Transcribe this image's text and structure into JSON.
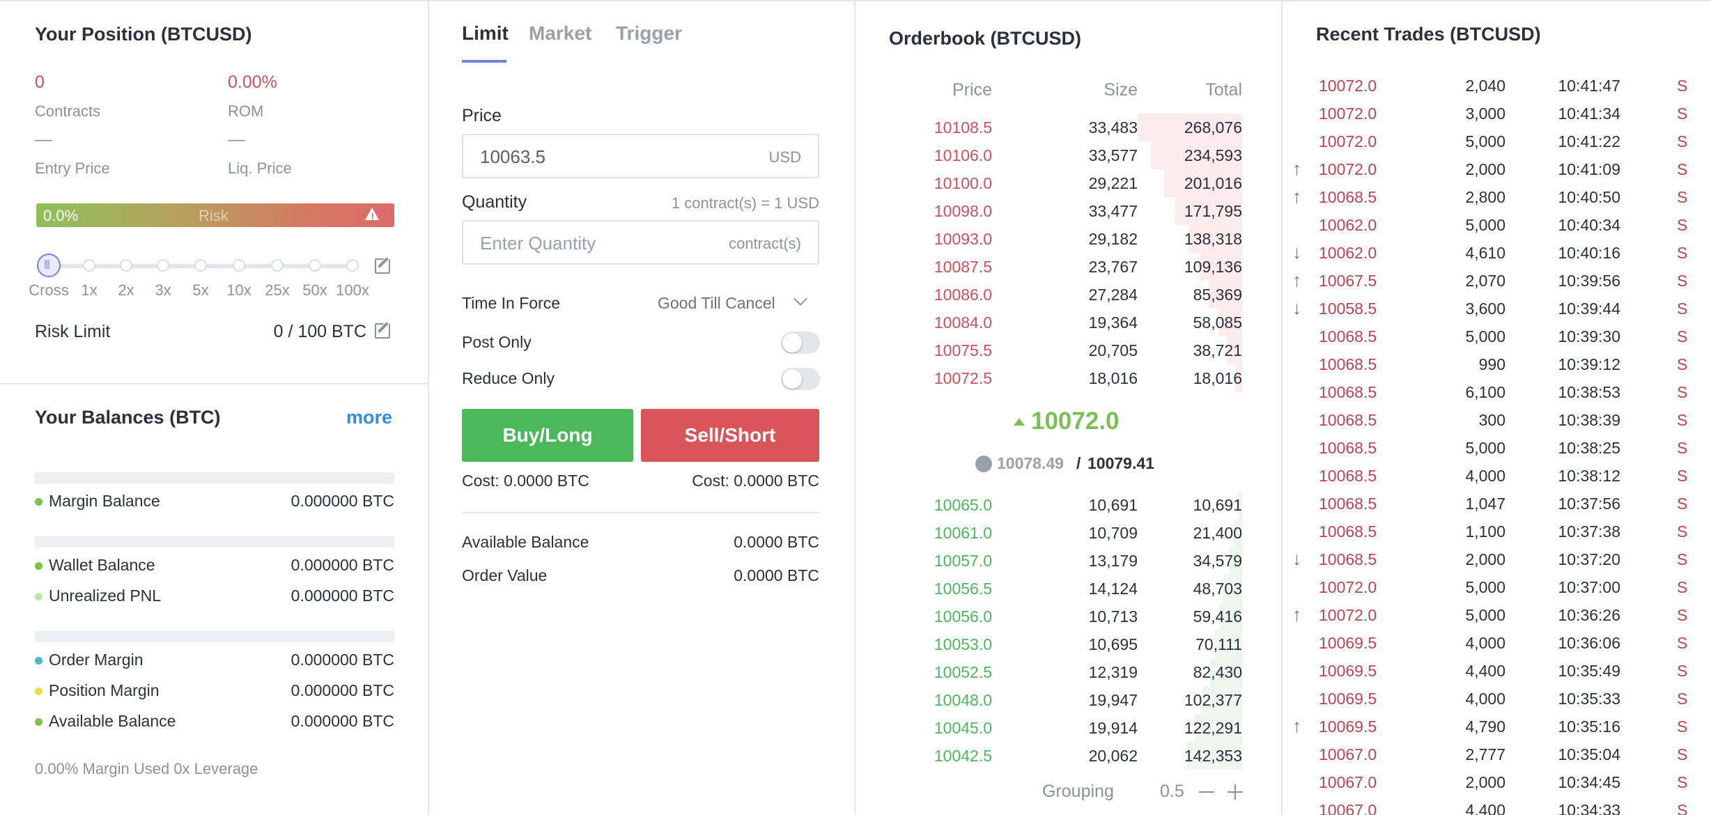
{
  "position": {
    "title": "Your Position (BTCUSD)",
    "contracts_value": "0",
    "contracts_label": "Contracts",
    "rom_value": "0.00%",
    "rom_label": "ROM",
    "entry_value": "—",
    "entry_label": "Entry Price",
    "liq_value": "—",
    "liq_label": "Liq. Price",
    "risk_percent": "0.0%",
    "risk_label": "Risk",
    "risk_level": 0.0,
    "leverage_options": [
      "Cross",
      "1x",
      "2x",
      "3x",
      "5x",
      "10x",
      "25x",
      "50x",
      "100x"
    ],
    "leverage_selected": "Cross",
    "risk_limit_label": "Risk Limit",
    "risk_limit_value": "0 / 100 BTC"
  },
  "balances": {
    "title": "Your Balances (BTC)",
    "more_label": "more",
    "groups": [
      [
        {
          "label": "Margin Balance",
          "value": "0.000000 BTC",
          "color": "#7fbf4d"
        }
      ],
      [
        {
          "label": "Wallet Balance",
          "value": "0.000000 BTC",
          "color": "#7fbf4d"
        },
        {
          "label": "Unrealized PNL",
          "value": "0.000000 BTC",
          "color": "#bfe3a8"
        }
      ],
      [
        {
          "label": "Order Margin",
          "value": "0.000000 BTC",
          "color": "#4fb7c9"
        },
        {
          "label": "Position Margin",
          "value": "0.000000 BTC",
          "color": "#e3e14a"
        },
        {
          "label": "Available Balance",
          "value": "0.000000 BTC",
          "color": "#7fbf4d"
        }
      ]
    ],
    "footer": "0.00% Margin Used 0x Leverage"
  },
  "order": {
    "tabs": [
      "Limit",
      "Market",
      "Trigger"
    ],
    "active_tab": "Limit",
    "price_label": "Price",
    "price_value": "10063.5",
    "price_unit": "USD",
    "quantity_label": "Quantity",
    "quantity_hint": "1 contract(s) = 1 USD",
    "quantity_placeholder": "Enter Quantity",
    "quantity_unit": "contract(s)",
    "tif_label": "Time In Force",
    "tif_value": "Good Till Cancel",
    "post_only_label": "Post Only",
    "post_only": false,
    "reduce_only_label": "Reduce Only",
    "reduce_only": false,
    "buy_label": "Buy/Long",
    "sell_label": "Sell/Short",
    "buy_cost": "Cost: 0.0000 BTC",
    "sell_cost": "Cost: 0.0000 BTC",
    "available_label": "Available Balance",
    "available_value": "0.0000 BTC",
    "order_value_label": "Order Value",
    "order_value_value": "0.0000 BTC",
    "colors": {
      "buy": "#4cb85c",
      "sell": "#d9555a"
    }
  },
  "orderbook": {
    "title": "Orderbook (BTCUSD)",
    "headers": {
      "price": "Price",
      "size": "Size",
      "total": "Total"
    },
    "asks": [
      {
        "price": "10108.5",
        "size": "33,483",
        "total": "268,076",
        "depth": 268076
      },
      {
        "price": "10106.0",
        "size": "33,577",
        "total": "234,593",
        "depth": 234593
      },
      {
        "price": "10100.0",
        "size": "29,221",
        "total": "201,016",
        "depth": 201016
      },
      {
        "price": "10098.0",
        "size": "33,477",
        "total": "171,795",
        "depth": 171795
      },
      {
        "price": "10093.0",
        "size": "29,182",
        "total": "138,318",
        "depth": 138318
      },
      {
        "price": "10087.5",
        "size": "23,767",
        "total": "109,136",
        "depth": 109136
      },
      {
        "price": "10086.0",
        "size": "27,284",
        "total": "85,369",
        "depth": 85369
      },
      {
        "price": "10084.0",
        "size": "19,364",
        "total": "58,085",
        "depth": 58085
      },
      {
        "price": "10075.5",
        "size": "20,705",
        "total": "38,721",
        "depth": 38721
      },
      {
        "price": "10072.5",
        "size": "18,016",
        "total": "18,016",
        "depth": 18016
      }
    ],
    "last_price": "10072.0",
    "index_price": "10078.49",
    "mark_price": "10079.41",
    "bids": [
      {
        "price": "10065.0",
        "size": "10,691",
        "total": "10,691",
        "depth": 10691
      },
      {
        "price": "10061.0",
        "size": "10,709",
        "total": "21,400",
        "depth": 21400
      },
      {
        "price": "10057.0",
        "size": "13,179",
        "total": "34,579",
        "depth": 34579
      },
      {
        "price": "10056.5",
        "size": "14,124",
        "total": "48,703",
        "depth": 48703
      },
      {
        "price": "10056.0",
        "size": "10,713",
        "total": "59,416",
        "depth": 59416
      },
      {
        "price": "10053.0",
        "size": "10,695",
        "total": "70,111",
        "depth": 70111
      },
      {
        "price": "10052.5",
        "size": "12,319",
        "total": "82,430",
        "depth": 82430
      },
      {
        "price": "10048.0",
        "size": "19,947",
        "total": "102,377",
        "depth": 102377
      },
      {
        "price": "10045.0",
        "size": "19,914",
        "total": "122,291",
        "depth": 122291
      },
      {
        "price": "10042.5",
        "size": "20,062",
        "total": "142,353",
        "depth": 142353
      }
    ],
    "max_depth": 268076,
    "grouping_label": "Grouping",
    "grouping_value": "0.5",
    "colors": {
      "ask": "#d0505a",
      "bid": "#4cb85c",
      "ask_bar": "#fdeced",
      "bid_bar": "#edf7ee"
    }
  },
  "trades": {
    "title": "Recent Trades (BTCUSD)",
    "rows": [
      {
        "dir": "",
        "price": "10072.0",
        "size": "2,040",
        "time": "10:41:47",
        "side": "S"
      },
      {
        "dir": "",
        "price": "10072.0",
        "size": "3,000",
        "time": "10:41:34",
        "side": "S"
      },
      {
        "dir": "",
        "price": "10072.0",
        "size": "5,000",
        "time": "10:41:22",
        "side": "S"
      },
      {
        "dir": "up",
        "price": "10072.0",
        "size": "2,000",
        "time": "10:41:09",
        "side": "S"
      },
      {
        "dir": "up",
        "price": "10068.5",
        "size": "2,800",
        "time": "10:40:50",
        "side": "S"
      },
      {
        "dir": "",
        "price": "10062.0",
        "size": "5,000",
        "time": "10:40:34",
        "side": "S"
      },
      {
        "dir": "down",
        "price": "10062.0",
        "size": "4,610",
        "time": "10:40:16",
        "side": "S"
      },
      {
        "dir": "up",
        "price": "10067.5",
        "size": "2,070",
        "time": "10:39:56",
        "side": "S"
      },
      {
        "dir": "down",
        "price": "10058.5",
        "size": "3,600",
        "time": "10:39:44",
        "side": "S"
      },
      {
        "dir": "",
        "price": "10068.5",
        "size": "5,000",
        "time": "10:39:30",
        "side": "S"
      },
      {
        "dir": "",
        "price": "10068.5",
        "size": "990",
        "time": "10:39:12",
        "side": "S"
      },
      {
        "dir": "",
        "price": "10068.5",
        "size": "6,100",
        "time": "10:38:53",
        "side": "S"
      },
      {
        "dir": "",
        "price": "10068.5",
        "size": "300",
        "time": "10:38:39",
        "side": "S"
      },
      {
        "dir": "",
        "price": "10068.5",
        "size": "5,000",
        "time": "10:38:25",
        "side": "S"
      },
      {
        "dir": "",
        "price": "10068.5",
        "size": "4,000",
        "time": "10:38:12",
        "side": "S"
      },
      {
        "dir": "",
        "price": "10068.5",
        "size": "1,047",
        "time": "10:37:56",
        "side": "S"
      },
      {
        "dir": "",
        "price": "10068.5",
        "size": "1,100",
        "time": "10:37:38",
        "side": "S"
      },
      {
        "dir": "down",
        "price": "10068.5",
        "size": "2,000",
        "time": "10:37:20",
        "side": "S"
      },
      {
        "dir": "",
        "price": "10072.0",
        "size": "5,000",
        "time": "10:37:00",
        "side": "S"
      },
      {
        "dir": "up",
        "price": "10072.0",
        "size": "5,000",
        "time": "10:36:26",
        "side": "S"
      },
      {
        "dir": "",
        "price": "10069.5",
        "size": "4,000",
        "time": "10:36:06",
        "side": "S"
      },
      {
        "dir": "",
        "price": "10069.5",
        "size": "4,400",
        "time": "10:35:49",
        "side": "S"
      },
      {
        "dir": "",
        "price": "10069.5",
        "size": "4,000",
        "time": "10:35:33",
        "side": "S"
      },
      {
        "dir": "up",
        "price": "10069.5",
        "size": "4,790",
        "time": "10:35:16",
        "side": "S"
      },
      {
        "dir": "",
        "price": "10067.0",
        "size": "2,777",
        "time": "10:35:04",
        "side": "S"
      },
      {
        "dir": "",
        "price": "10067.0",
        "size": "2,000",
        "time": "10:34:45",
        "side": "S"
      },
      {
        "dir": "",
        "price": "10067.0",
        "size": "4,400",
        "time": "10:34:33",
        "side": "S"
      }
    ],
    "colors": {
      "sell": "#c0434d",
      "up": "#d0505a",
      "down": "#d0505a"
    }
  },
  "icons": {
    "edit": "edit-icon",
    "warning": "warning-icon",
    "globe": "globe-icon",
    "chevron": "chevron-down-icon",
    "minus": "minus-icon",
    "plus": "plus-icon",
    "arrow_up": "arrow-up-icon",
    "arrow_down": "arrow-down-icon",
    "triangle_up": "triangle-up-icon"
  }
}
